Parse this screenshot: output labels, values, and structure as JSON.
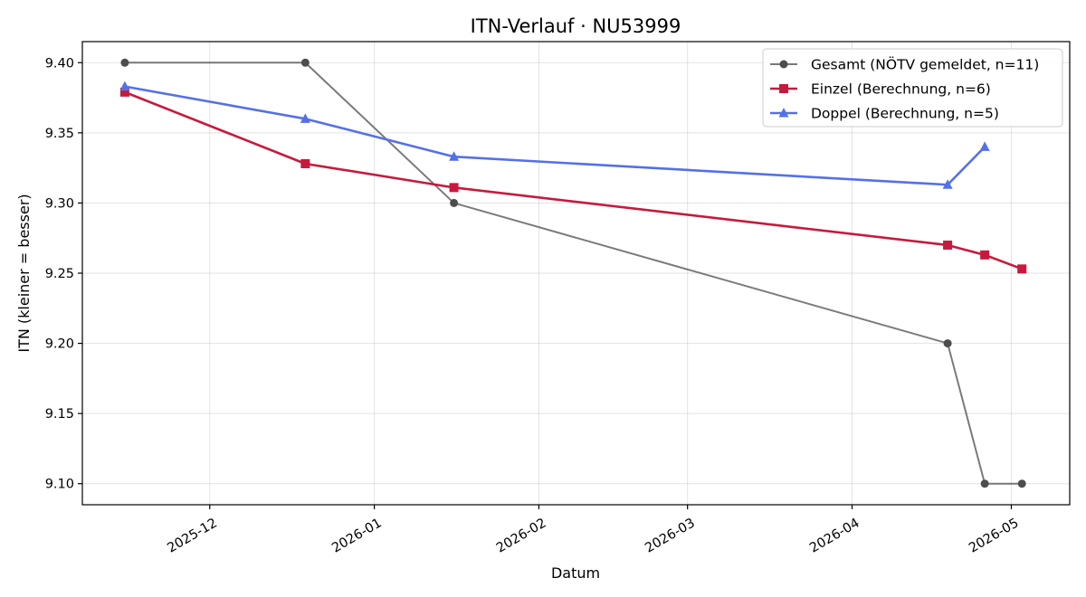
{
  "chart_data": {
    "type": "line",
    "title": "ITN-Verlauf · NU53999",
    "xlabel": "Datum",
    "ylabel": "ITN  (kleiner = besser)",
    "x_ticks": [
      "2025-12-01",
      "2026-01-01",
      "2026-02-01",
      "2026-03-01",
      "2026-04-01",
      "2026-05-01"
    ],
    "x_tick_labels": [
      "2025-12",
      "2026-01",
      "2026-02",
      "2026-03",
      "2026-04",
      "2026-05"
    ],
    "y_ticks": [
      9.1,
      9.15,
      9.2,
      9.25,
      9.3,
      9.35,
      9.4
    ],
    "y_tick_labels": [
      "9.10",
      "9.15",
      "9.20",
      "9.25",
      "9.30",
      "9.35",
      "9.40"
    ],
    "xlim": [
      "2025-11-07",
      "2026-05-12"
    ],
    "ylim": [
      9.085,
      9.415
    ],
    "grid": true,
    "legend_position": "top-right",
    "series": [
      {
        "name": "Gesamt (NÖTV gemeldet, n=11)",
        "color": "#4d4d4d",
        "marker": "circle",
        "points": [
          {
            "x": "2025-11-15",
            "y": 9.4
          },
          {
            "x": "2025-12-19",
            "y": 9.4
          },
          {
            "x": "2026-01-16",
            "y": 9.3
          },
          {
            "x": "2026-04-19",
            "y": 9.2
          },
          {
            "x": "2026-04-26",
            "y": 9.1
          },
          {
            "x": "2026-05-03",
            "y": 9.1
          }
        ]
      },
      {
        "name": "Einzel (Berechnung, n=6)",
        "color": "#c8193c",
        "marker": "square",
        "points": [
          {
            "x": "2025-11-15",
            "y": 9.379
          },
          {
            "x": "2025-12-19",
            "y": 9.328
          },
          {
            "x": "2026-01-16",
            "y": 9.311
          },
          {
            "x": "2026-04-19",
            "y": 9.27
          },
          {
            "x": "2026-04-26",
            "y": 9.263
          },
          {
            "x": "2026-05-03",
            "y": 9.253
          }
        ]
      },
      {
        "name": "Doppel (Berechnung, n=5)",
        "color": "#5470e8",
        "marker": "triangle",
        "points": [
          {
            "x": "2025-11-15",
            "y": 9.383
          },
          {
            "x": "2025-12-19",
            "y": 9.36
          },
          {
            "x": "2026-01-16",
            "y": 9.333
          },
          {
            "x": "2026-04-19",
            "y": 9.313
          },
          {
            "x": "2026-04-26",
            "y": 9.34
          }
        ]
      }
    ]
  }
}
